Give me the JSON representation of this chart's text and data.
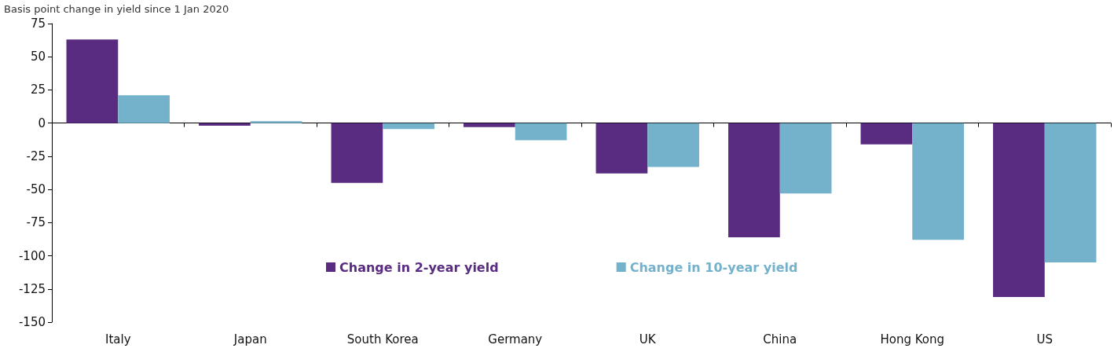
{
  "chart_data": {
    "type": "bar",
    "title": "Basis point change in yield since 1 Jan 2020",
    "categories": [
      "Italy",
      "Japan",
      "South Korea",
      "Germany",
      "UK",
      "China",
      "Hong Kong",
      "US"
    ],
    "series": [
      {
        "name": "Change in 2-year yield",
        "color": "#592c82",
        "values": [
          63,
          -2,
          -45,
          -3,
          -38,
          -86,
          -16,
          -131
        ]
      },
      {
        "name": "Change in 10-year yield",
        "color": "#74b2cc",
        "values": [
          21,
          1.5,
          -4.5,
          -13,
          -33,
          -53,
          -88,
          -105
        ]
      }
    ],
    "ylim": [
      -150,
      75
    ],
    "yticks": [
      -150,
      -125,
      -100,
      -75,
      -50,
      -25,
      0,
      25,
      50,
      75
    ],
    "legend": "bottom"
  }
}
